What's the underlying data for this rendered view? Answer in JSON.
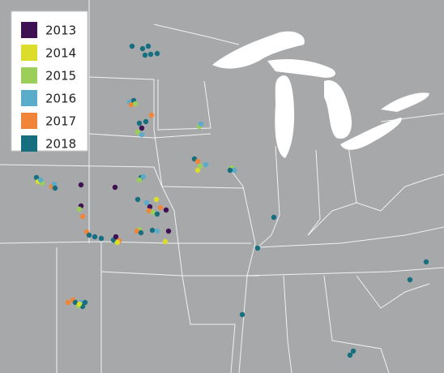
{
  "legend": {
    "items": [
      {
        "label": "2013",
        "color": "#3d1152"
      },
      {
        "label": "2014",
        "color": "#dcdc2a"
      },
      {
        "label": "2015",
        "color": "#9bcf5a"
      },
      {
        "label": "2016",
        "color": "#5aaccb"
      },
      {
        "label": "2017",
        "color": "#f0853a"
      },
      {
        "label": "2018",
        "color": "#166f7e"
      }
    ]
  }
}
